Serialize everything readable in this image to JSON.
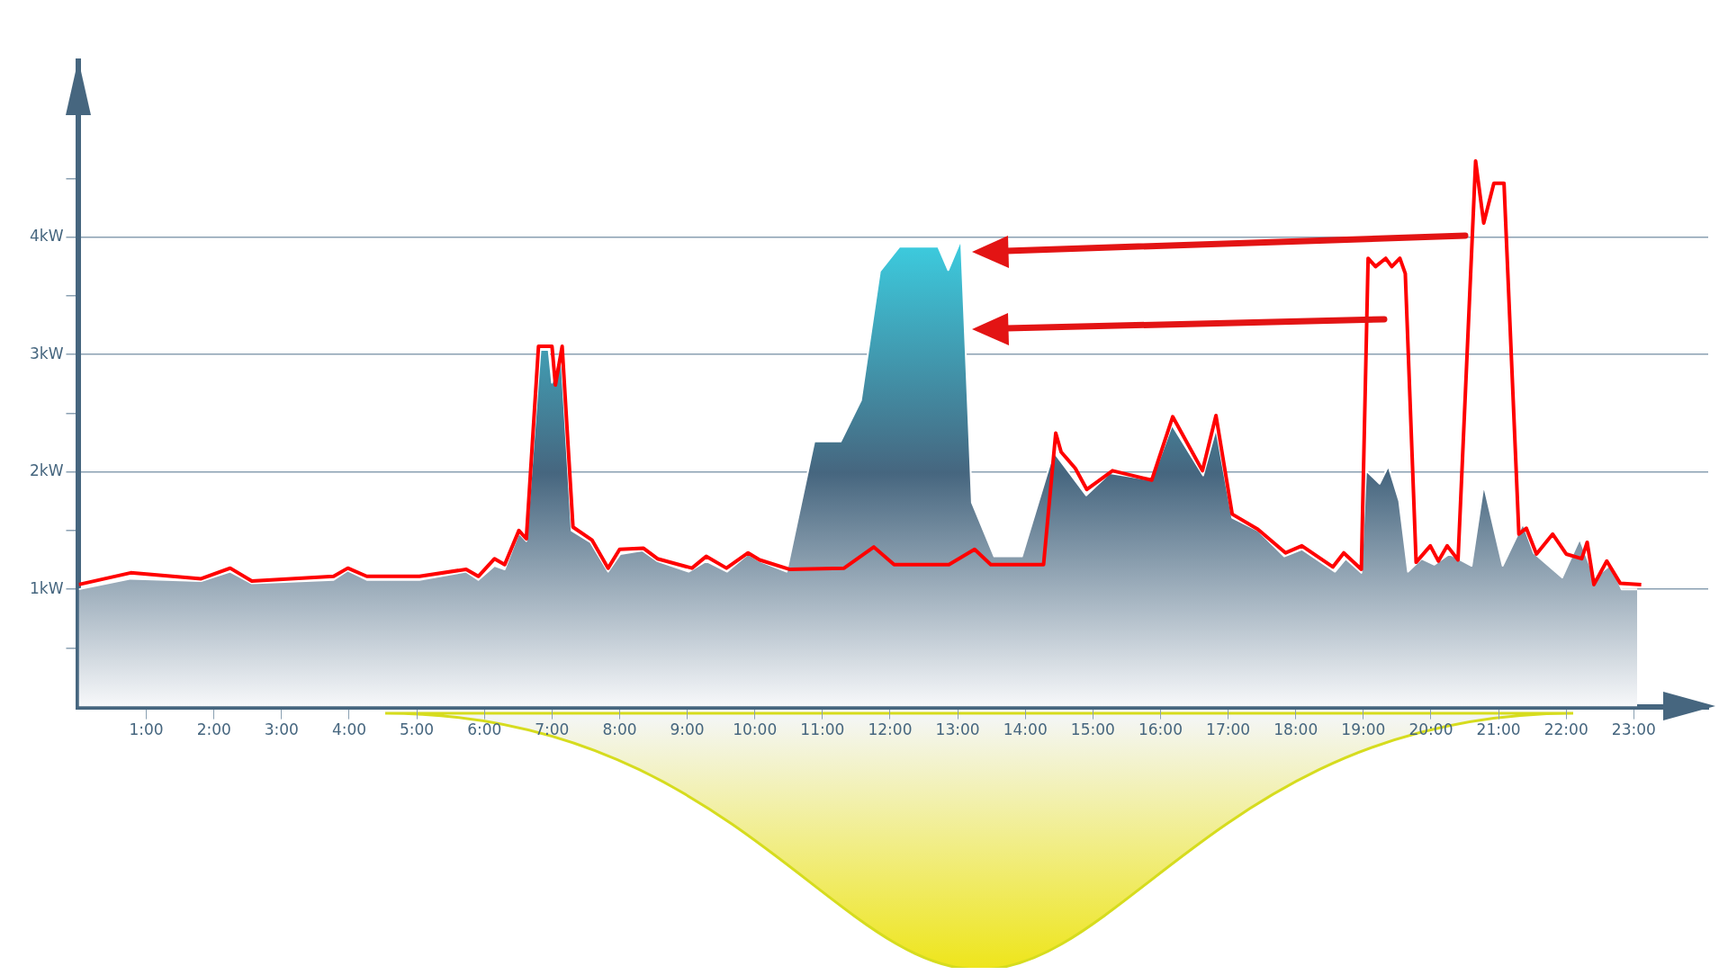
{
  "chart_data": {
    "type": "area",
    "xlim": [
      0,
      24.1
    ],
    "ylim": [
      0,
      5.5
    ],
    "xticks": [
      {
        "value": 1,
        "label": "1:00"
      },
      {
        "value": 2,
        "label": "2:00"
      },
      {
        "value": 3,
        "label": "3:00"
      },
      {
        "value": 4,
        "label": "4:00"
      },
      {
        "value": 5,
        "label": "5:00"
      },
      {
        "value": 6,
        "label": "6:00"
      },
      {
        "value": 7,
        "label": "7:00"
      },
      {
        "value": 8,
        "label": "8:00"
      },
      {
        "value": 9,
        "label": "9:00"
      },
      {
        "value": 10,
        "label": "10:00"
      },
      {
        "value": 11,
        "label": "11:00"
      },
      {
        "value": 12,
        "label": "12:00"
      },
      {
        "value": 13,
        "label": "13:00"
      },
      {
        "value": 14,
        "label": "14:00"
      },
      {
        "value": 15,
        "label": "15:00"
      },
      {
        "value": 16,
        "label": "16:00"
      },
      {
        "value": 17,
        "label": "17:00"
      },
      {
        "value": 18,
        "label": "18:00"
      },
      {
        "value": 19,
        "label": "19:00"
      },
      {
        "value": 20,
        "label": "20:00"
      },
      {
        "value": 21,
        "label": "21:00"
      },
      {
        "value": 22,
        "label": "22:00"
      },
      {
        "value": 23,
        "label": "23:00"
      }
    ],
    "yticks": [
      {
        "value": 0.5,
        "label": null
      },
      {
        "value": 1,
        "label": "1kW"
      },
      {
        "value": 1.5,
        "label": null
      },
      {
        "value": 2,
        "label": "2kW"
      },
      {
        "value": 2.5,
        "label": null
      },
      {
        "value": 3,
        "label": "3kW"
      },
      {
        "value": 3.5,
        "label": null
      },
      {
        "value": 4,
        "label": "4kW"
      },
      {
        "value": 4.5,
        "label": null
      }
    ],
    "grid": "y",
    "legend": false,
    "marker": "none",
    "line_style": "solid",
    "series": [
      {
        "type": "area",
        "color": "#46667f",
        "x": [
          0,
          0.77,
          1.81,
          2.24,
          2.56,
          3.77,
          3.98,
          4.26,
          5.04,
          5.73,
          5.91,
          6.15,
          6.3,
          6.51,
          6.62,
          6.83,
          6.95,
          7.0,
          7.13,
          7.29,
          7.57,
          7.83,
          8.01,
          8.34,
          8.56,
          9.02,
          9.28,
          9.59,
          9.9,
          10.07,
          10.47,
          10.88,
          11.27,
          11.57,
          11.85,
          12.14,
          12.71,
          12.86,
          13.05,
          13.21,
          13.54,
          13.95,
          14.42,
          14.9,
          15.25,
          15.87,
          16.17,
          16.63,
          16.82,
          17.06,
          17.44,
          17.83,
          18.09,
          18.58,
          18.74,
          18.97,
          19.04,
          19.24,
          19.37,
          19.53,
          19.66,
          19.86,
          20.05,
          20.27,
          20.6,
          20.78,
          21.06,
          21.36,
          21.52,
          21.94,
          22.2,
          22.42,
          22.66,
          22.82,
          23.05
        ],
        "values": [
          1.0,
          1.09,
          1.07,
          1.15,
          1.05,
          1.08,
          1.16,
          1.08,
          1.08,
          1.15,
          1.08,
          1.2,
          1.17,
          1.48,
          1.41,
          3.04,
          3.04,
          2.76,
          3.04,
          1.5,
          1.4,
          1.15,
          1.3,
          1.33,
          1.24,
          1.15,
          1.24,
          1.15,
          1.3,
          1.24,
          1.15,
          2.26,
          2.26,
          2.61,
          3.71,
          3.92,
          3.92,
          3.72,
          3.98,
          1.74,
          1.28,
          1.28,
          2.17,
          1.8,
          1.99,
          1.93,
          2.4,
          1.97,
          2.37,
          1.61,
          1.5,
          1.28,
          1.34,
          1.15,
          1.26,
          1.14,
          2.01,
          1.9,
          2.05,
          1.75,
          1.15,
          1.26,
          1.21,
          1.3,
          1.2,
          1.89,
          1.2,
          1.56,
          1.31,
          1.1,
          1.43,
          1.1,
          1.21,
          1.0,
          1.0
        ]
      },
      {
        "type": "line",
        "color": "#ff0000",
        "x": [
          0,
          0.77,
          1.81,
          2.24,
          2.56,
          3.77,
          3.98,
          4.26,
          5.04,
          5.73,
          5.91,
          6.15,
          6.3,
          6.51,
          6.62,
          6.8,
          7.0,
          7.05,
          7.15,
          7.31,
          7.59,
          7.83,
          8.0,
          8.35,
          8.56,
          9.07,
          9.28,
          9.58,
          9.9,
          10.07,
          10.51,
          11.32,
          11.76,
          12.06,
          12.87,
          13.25,
          13.49,
          14.27,
          14.45,
          14.53,
          14.74,
          14.91,
          15.29,
          15.87,
          16.18,
          16.62,
          16.82,
          17.06,
          17.44,
          17.85,
          18.09,
          18.55,
          18.71,
          18.97,
          19.07,
          19.18,
          19.33,
          19.42,
          19.54,
          19.62,
          19.78,
          19.99,
          20.11,
          20.24,
          20.4,
          20.66,
          20.78,
          20.93,
          21.08,
          21.3,
          21.41,
          21.56,
          21.8,
          22.0,
          22.23,
          22.31,
          22.41,
          22.6,
          22.8,
          23.11
        ],
        "values": [
          1.04,
          1.14,
          1.09,
          1.18,
          1.07,
          1.11,
          1.18,
          1.11,
          1.11,
          1.17,
          1.11,
          1.26,
          1.21,
          1.5,
          1.43,
          3.07,
          3.07,
          2.74,
          3.07,
          1.53,
          1.42,
          1.18,
          1.34,
          1.35,
          1.26,
          1.18,
          1.28,
          1.18,
          1.31,
          1.25,
          1.17,
          1.18,
          1.36,
          1.21,
          1.21,
          1.34,
          1.21,
          1.21,
          2.33,
          2.17,
          2.03,
          1.85,
          2.01,
          1.93,
          2.47,
          2.01,
          2.48,
          1.64,
          1.51,
          1.31,
          1.37,
          1.19,
          1.31,
          1.17,
          3.82,
          3.75,
          3.82,
          3.75,
          3.82,
          3.69,
          1.23,
          1.37,
          1.24,
          1.37,
          1.25,
          4.65,
          4.12,
          4.46,
          4.46,
          1.47,
          1.52,
          1.3,
          1.47,
          1.3,
          1.26,
          1.4,
          1.04,
          1.24,
          1.05,
          1.04
        ]
      }
    ]
  }
}
